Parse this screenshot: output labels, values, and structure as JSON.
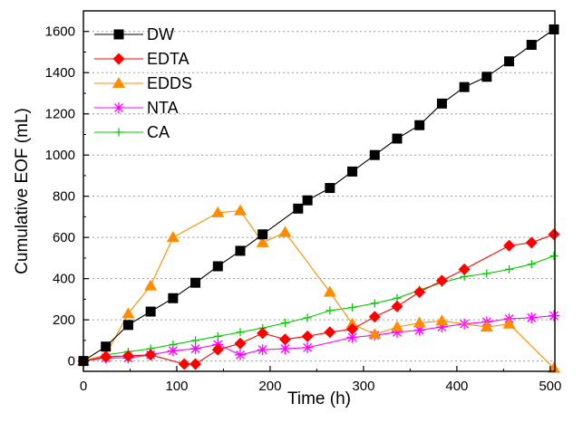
{
  "chart_data": {
    "type": "line",
    "title": "",
    "xlabel": "Time (h)",
    "ylabel": "Cumulative EOF (mL)",
    "xlim": [
      0,
      505
    ],
    "ylim": [
      -50,
      1700
    ],
    "xticks": [
      0,
      100,
      200,
      300,
      400,
      500
    ],
    "yticks": [
      0,
      200,
      400,
      600,
      800,
      1000,
      1200,
      1400,
      1600
    ],
    "grid": "horizontal dotted",
    "legend_position": "top-left",
    "series": [
      {
        "name": "DW",
        "color": "#000000",
        "marker": "square",
        "x": [
          0,
          24,
          48,
          72,
          96,
          120,
          144,
          168,
          192,
          230,
          240,
          264,
          288,
          312,
          336,
          360,
          384,
          408,
          432,
          456,
          480,
          504
        ],
        "y": [
          0,
          70,
          175,
          240,
          305,
          380,
          460,
          535,
          615,
          740,
          780,
          840,
          920,
          1000,
          1080,
          1145,
          1250,
          1330,
          1380,
          1455,
          1535,
          1610
        ]
      },
      {
        "name": "EDTA",
        "color": "#ff0000",
        "marker": "diamond",
        "x": [
          0,
          24,
          48,
          72,
          108,
          120,
          144,
          168,
          192,
          216,
          240,
          264,
          288,
          312,
          336,
          360,
          384,
          408,
          456,
          480,
          504
        ],
        "y": [
          0,
          20,
          25,
          30,
          -15,
          -15,
          55,
          85,
          135,
          105,
          120,
          140,
          155,
          215,
          265,
          335,
          390,
          445,
          560,
          575,
          615
        ]
      },
      {
        "name": "EDDS",
        "color": "#ff8c00",
        "marker": "triangle",
        "x": [
          0,
          24,
          48,
          72,
          96,
          144,
          168,
          192,
          216,
          264,
          288,
          312,
          336,
          360,
          384,
          432,
          456,
          504
        ],
        "y": [
          0,
          30,
          230,
          365,
          600,
          720,
          730,
          575,
          625,
          335,
          180,
          130,
          165,
          185,
          195,
          165,
          180,
          -35
        ]
      },
      {
        "name": "NTA",
        "color": "#ff00ff",
        "marker": "star",
        "x": [
          0,
          24,
          48,
          72,
          96,
          120,
          144,
          168,
          192,
          216,
          240,
          288,
          312,
          336,
          360,
          384,
          408,
          432,
          456,
          480,
          504
        ],
        "y": [
          0,
          15,
          15,
          30,
          50,
          60,
          80,
          30,
          55,
          60,
          65,
          115,
          125,
          140,
          150,
          165,
          180,
          190,
          205,
          210,
          220
        ]
      },
      {
        "name": "CA",
        "color": "#00cc00",
        "marker": "plus",
        "x": [
          0,
          24,
          48,
          72,
          96,
          120,
          144,
          168,
          192,
          216,
          240,
          264,
          288,
          312,
          336,
          360,
          384,
          408,
          432,
          456,
          480,
          504
        ],
        "y": [
          0,
          30,
          45,
          60,
          80,
          100,
          120,
          140,
          160,
          185,
          210,
          245,
          260,
          280,
          305,
          345,
          380,
          410,
          425,
          445,
          470,
          510
        ]
      }
    ]
  }
}
